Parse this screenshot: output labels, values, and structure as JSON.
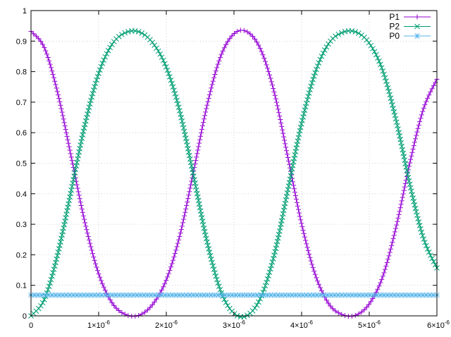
{
  "chart_data": {
    "type": "line",
    "title": "",
    "xlabel": "",
    "ylabel": "",
    "xlim": [
      0,
      6e-06
    ],
    "ylim": [
      0,
      1
    ],
    "grid": true,
    "legend_position": "top-right",
    "x_ticks": [
      {
        "value": 0,
        "mantissa": "0",
        "exponent": ""
      },
      {
        "value": 1e-06,
        "mantissa": "1×10",
        "exponent": "-6"
      },
      {
        "value": 2e-06,
        "mantissa": "2×10",
        "exponent": "-6"
      },
      {
        "value": 3e-06,
        "mantissa": "3×10",
        "exponent": "-6"
      },
      {
        "value": 4e-06,
        "mantissa": "4×10",
        "exponent": "-6"
      },
      {
        "value": 5e-06,
        "mantissa": "5×10",
        "exponent": "-6"
      },
      {
        "value": 6e-06,
        "mantissa": "6×10",
        "exponent": "-6"
      }
    ],
    "y_ticks": [
      {
        "value": 0,
        "label": "0"
      },
      {
        "value": 0.1,
        "label": "0.1"
      },
      {
        "value": 0.2,
        "label": "0.2"
      },
      {
        "value": 0.3,
        "label": "0.3"
      },
      {
        "value": 0.4,
        "label": "0.4"
      },
      {
        "value": 0.5,
        "label": "0.5"
      },
      {
        "value": 0.6,
        "label": "0.6"
      },
      {
        "value": 0.7,
        "label": "0.7"
      },
      {
        "value": 0.8,
        "label": "0.8"
      },
      {
        "value": 0.9,
        "label": "0.9"
      },
      {
        "value": 1,
        "label": "1"
      }
    ],
    "x": [
      0,
      2e-07,
      4e-07,
      6e-07,
      8e-07,
      1e-06,
      1.2e-06,
      1.4e-06,
      1.6e-06,
      1.8e-06,
      2e-06,
      2.2e-06,
      2.4e-06,
      2.6e-06,
      2.8e-06,
      3e-06,
      3.2e-06,
      3.4e-06,
      3.6e-06,
      3.8e-06,
      4e-06,
      4.2e-06,
      4.4e-06,
      4.6e-06,
      4.8e-06,
      5e-06,
      5.2e-06,
      5.4e-06,
      5.6e-06,
      5.8e-06,
      6e-06
    ],
    "series": [
      {
        "name": "P1",
        "color": "#9400d3",
        "marker": "plus",
        "values": [
          0.932,
          0.877,
          0.725,
          0.515,
          0.303,
          0.138,
          0.042,
          0.004,
          0.002,
          0.038,
          0.118,
          0.263,
          0.47,
          0.687,
          0.848,
          0.924,
          0.93,
          0.87,
          0.728,
          0.516,
          0.301,
          0.136,
          0.04,
          0.004,
          0.002,
          0.039,
          0.129,
          0.294,
          0.501,
          0.677,
          0.775
        ]
      },
      {
        "name": "P2",
        "color": "#009e73",
        "marker": "cross",
        "values": [
          0.0,
          0.055,
          0.207,
          0.417,
          0.629,
          0.794,
          0.89,
          0.928,
          0.93,
          0.894,
          0.814,
          0.669,
          0.462,
          0.245,
          0.084,
          0.008,
          0.002,
          0.062,
          0.204,
          0.416,
          0.631,
          0.796,
          0.892,
          0.928,
          0.93,
          0.893,
          0.803,
          0.638,
          0.431,
          0.255,
          0.157
        ]
      },
      {
        "name": "P0",
        "color": "#56b4e9",
        "marker": "star",
        "values": [
          0.068,
          0.068,
          0.068,
          0.068,
          0.068,
          0.068,
          0.068,
          0.068,
          0.068,
          0.068,
          0.068,
          0.068,
          0.068,
          0.068,
          0.068,
          0.068,
          0.068,
          0.068,
          0.068,
          0.068,
          0.068,
          0.068,
          0.068,
          0.068,
          0.068,
          0.068,
          0.068,
          0.068,
          0.068,
          0.068,
          0.068
        ]
      }
    ]
  }
}
